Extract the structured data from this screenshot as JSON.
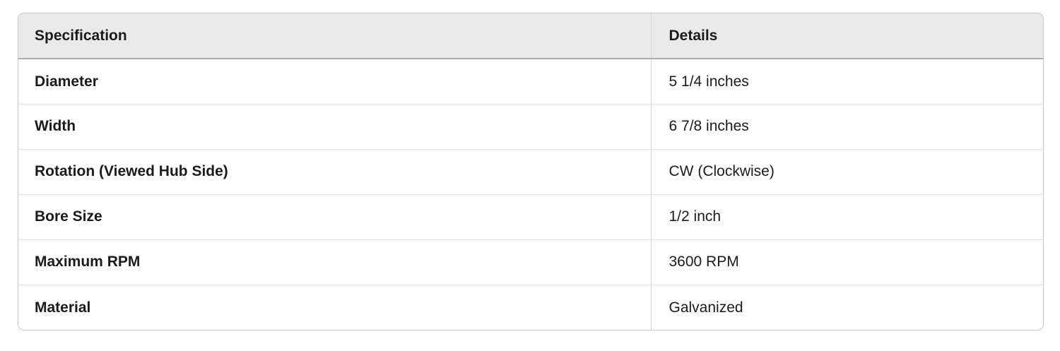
{
  "table": {
    "columns": [
      {
        "label": "Specification"
      },
      {
        "label": "Details"
      }
    ],
    "rows": [
      {
        "spec": "Diameter",
        "detail": "5 1/4 inches"
      },
      {
        "spec": "Width",
        "detail": "6 7/8 inches"
      },
      {
        "spec": "Rotation (Viewed Hub Side)",
        "detail": "CW (Clockwise)"
      },
      {
        "spec": "Bore Size",
        "detail": "1/2 inch"
      },
      {
        "spec": "Maximum RPM",
        "detail": "3600 RPM"
      },
      {
        "spec": "Material",
        "detail": "Galvanized"
      }
    ],
    "colors": {
      "header_bg": "#eaeaea",
      "outer_border": "#c6c6c6",
      "header_divider": "#ababab",
      "row_divider": "#e3e3e3",
      "col_divider": "#d4d4d4",
      "text": "#1b1b1b",
      "body_bg": "#ffffff"
    }
  }
}
